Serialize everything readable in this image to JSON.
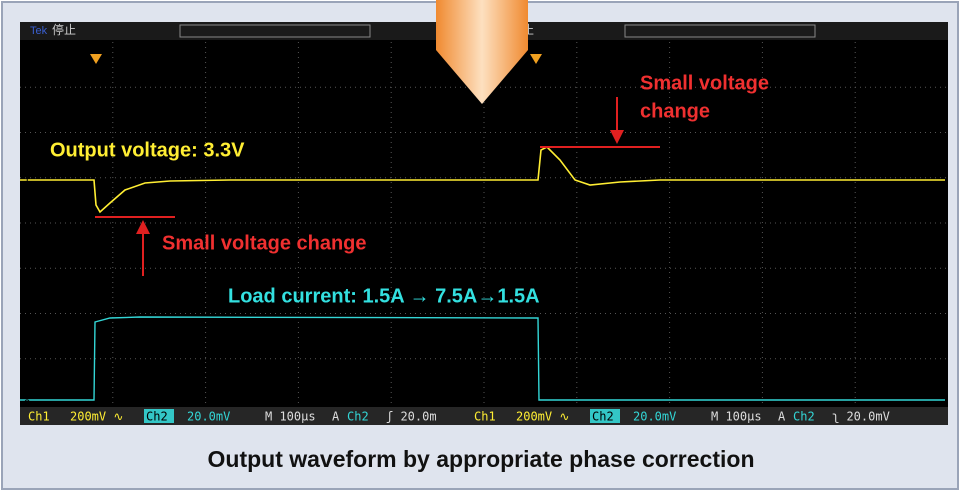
{
  "scope": {
    "brand": "Tek",
    "state_left": "停止",
    "state_right": "停止",
    "ch1_marker": "1",
    "ch2_marker": "2"
  },
  "annotations": {
    "output_voltage": "Output voltage: 3.3V",
    "small_change_left": "Small voltage change",
    "small_change_right": [
      "Small voltage",
      "change"
    ],
    "load_current": "Load current: 1.5A → 7.5A→1.5A"
  },
  "status_left": [
    "Ch1",
    "200mV ∿",
    "Ch2",
    "20.0mV",
    "M 100µs",
    "A",
    "Ch2",
    "ʃ 20.0m"
  ],
  "status_right": [
    "Ch1",
    "200mV ∿",
    "Ch2",
    "20.0mV",
    "M 100µs",
    "A",
    "Ch2",
    "ʅ 20.0mV"
  ],
  "caption": "Output waveform by appropriate phase correction"
}
